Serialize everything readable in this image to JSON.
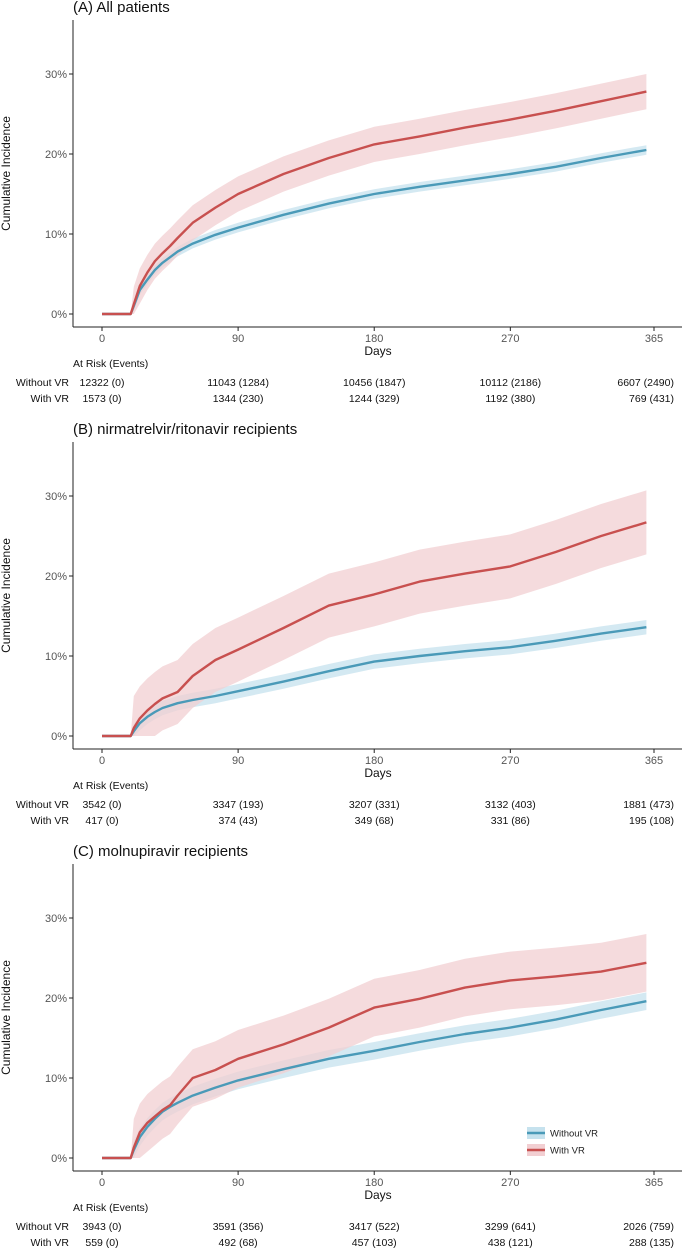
{
  "figure": {
    "legend": {
      "items": [
        {
          "name": "Without VR",
          "color": "#4a9ab8",
          "band": "#c6e2ee"
        },
        {
          "name": "With VR",
          "color": "#c8504f",
          "band": "#f2cfd2"
        }
      ]
    },
    "at_risk_header": "At Risk (Events)"
  },
  "chart_data": [
    {
      "type": "line",
      "title": "(A) All patients",
      "xlabel": "Days",
      "ylabel": "Cumulative Incidence",
      "xlim": [
        0,
        365
      ],
      "ylim": [
        0,
        0.36
      ],
      "xticks": [
        0,
        90,
        180,
        270,
        365
      ],
      "yticks": [
        0,
        0.1,
        0.2,
        0.3
      ],
      "ytick_labels": [
        "0%",
        "10%",
        "20%",
        "30%"
      ],
      "series": [
        {
          "name": "Without VR",
          "x": [
            0,
            19,
            21,
            25,
            30,
            35,
            40,
            45,
            50,
            60,
            75,
            90,
            120,
            150,
            180,
            210,
            240,
            270,
            300,
            330,
            360
          ],
          "y": [
            0,
            0,
            0.01,
            0.03,
            0.043,
            0.055,
            0.064,
            0.071,
            0.078,
            0.088,
            0.099,
            0.108,
            0.124,
            0.138,
            0.15,
            0.159,
            0.167,
            0.175,
            0.184,
            0.195,
            0.205
          ],
          "band": 0.006
        },
        {
          "name": "With VR",
          "x": [
            0,
            19,
            21,
            25,
            30,
            35,
            40,
            45,
            50,
            60,
            75,
            90,
            120,
            150,
            180,
            210,
            240,
            270,
            300,
            330,
            360
          ],
          "y": [
            0,
            0,
            0.012,
            0.035,
            0.052,
            0.066,
            0.076,
            0.085,
            0.095,
            0.114,
            0.133,
            0.15,
            0.175,
            0.195,
            0.212,
            0.222,
            0.233,
            0.243,
            0.254,
            0.266,
            0.278
          ],
          "band": 0.022
        }
      ],
      "at_risk": {
        "x": [
          0,
          90,
          180,
          270,
          365
        ],
        "rows": [
          {
            "label": "Without VR",
            "values": [
              "12322 (0)",
              "11043 (1284)",
              "10456 (1847)",
              "10112 (2186)",
              "6607 (2490)"
            ]
          },
          {
            "label": "With VR",
            "values": [
              "1573 (0)",
              "1344 (230)",
              "1244 (329)",
              "1192 (380)",
              "769 (431)"
            ]
          }
        ]
      }
    },
    {
      "type": "line",
      "title": "(B) nirmatrelvir/ritonavir recipients",
      "xlabel": "Days",
      "ylabel": "Cumulative Incidence",
      "xlim": [
        0,
        365
      ],
      "ylim": [
        0,
        0.36
      ],
      "xticks": [
        0,
        90,
        180,
        270,
        365
      ],
      "yticks": [
        0,
        0.1,
        0.2,
        0.3
      ],
      "ytick_labels": [
        "0%",
        "10%",
        "20%",
        "30%"
      ],
      "series": [
        {
          "name": "Without VR",
          "x": [
            0,
            19,
            21,
            25,
            30,
            35,
            40,
            50,
            60,
            75,
            90,
            120,
            150,
            180,
            210,
            240,
            270,
            300,
            330,
            360
          ],
          "y": [
            0,
            0,
            0.006,
            0.016,
            0.024,
            0.03,
            0.035,
            0.041,
            0.045,
            0.05,
            0.056,
            0.068,
            0.081,
            0.093,
            0.1,
            0.106,
            0.111,
            0.119,
            0.128,
            0.136
          ],
          "band": 0.009
        },
        {
          "name": "With VR",
          "x": [
            0,
            19,
            21,
            25,
            30,
            35,
            40,
            50,
            60,
            75,
            90,
            120,
            150,
            180,
            210,
            240,
            270,
            300,
            330,
            360
          ],
          "y": [
            0,
            0,
            0.01,
            0.022,
            0.032,
            0.04,
            0.047,
            0.055,
            0.075,
            0.095,
            0.108,
            0.135,
            0.163,
            0.177,
            0.193,
            0.203,
            0.212,
            0.23,
            0.25,
            0.267
          ],
          "band": 0.04
        }
      ],
      "at_risk": {
        "x": [
          0,
          90,
          180,
          270,
          365
        ],
        "rows": [
          {
            "label": "Without VR",
            "values": [
              "3542 (0)",
              "3347 (193)",
              "3207 (331)",
              "3132 (403)",
              "1881 (473)"
            ]
          },
          {
            "label": "With VR",
            "values": [
              "417 (0)",
              "374 (43)",
              "349 (68)",
              "331 (86)",
              "195 (108)"
            ]
          }
        ]
      }
    },
    {
      "type": "line",
      "title": "(C) molnupiravir recipients",
      "xlabel": "Days",
      "ylabel": "Cumulative Incidence",
      "xlim": [
        0,
        365
      ],
      "ylim": [
        0,
        0.36
      ],
      "xticks": [
        0,
        90,
        180,
        270,
        365
      ],
      "yticks": [
        0,
        0.1,
        0.2,
        0.3
      ],
      "ytick_labels": [
        "0%",
        "10%",
        "20%",
        "30%"
      ],
      "series": [
        {
          "name": "Without VR",
          "x": [
            0,
            19,
            21,
            25,
            30,
            35,
            40,
            45,
            50,
            60,
            75,
            90,
            120,
            150,
            180,
            210,
            240,
            270,
            300,
            330,
            360
          ],
          "y": [
            0,
            0,
            0.01,
            0.026,
            0.039,
            0.049,
            0.058,
            0.064,
            0.069,
            0.078,
            0.088,
            0.097,
            0.111,
            0.124,
            0.134,
            0.145,
            0.155,
            0.163,
            0.173,
            0.185,
            0.196
          ],
          "band": 0.011
        },
        {
          "name": "With VR",
          "x": [
            0,
            19,
            21,
            25,
            30,
            35,
            40,
            45,
            50,
            60,
            75,
            90,
            120,
            150,
            180,
            210,
            240,
            270,
            300,
            330,
            360
          ],
          "y": [
            0,
            0,
            0.013,
            0.032,
            0.044,
            0.052,
            0.06,
            0.066,
            0.078,
            0.1,
            0.11,
            0.124,
            0.142,
            0.163,
            0.188,
            0.199,
            0.213,
            0.222,
            0.227,
            0.233,
            0.244
          ],
          "band": 0.036
        }
      ],
      "at_risk": {
        "x": [
          0,
          90,
          180,
          270,
          365
        ],
        "rows": [
          {
            "label": "Without VR",
            "values": [
              "3943 (0)",
              "3591 (356)",
              "3417 (522)",
              "3299 (641)",
              "2026 (759)"
            ]
          },
          {
            "label": "With VR",
            "values": [
              "559 (0)",
              "492 (68)",
              "457 (103)",
              "438 (121)",
              "288 (135)"
            ]
          }
        ]
      }
    }
  ]
}
